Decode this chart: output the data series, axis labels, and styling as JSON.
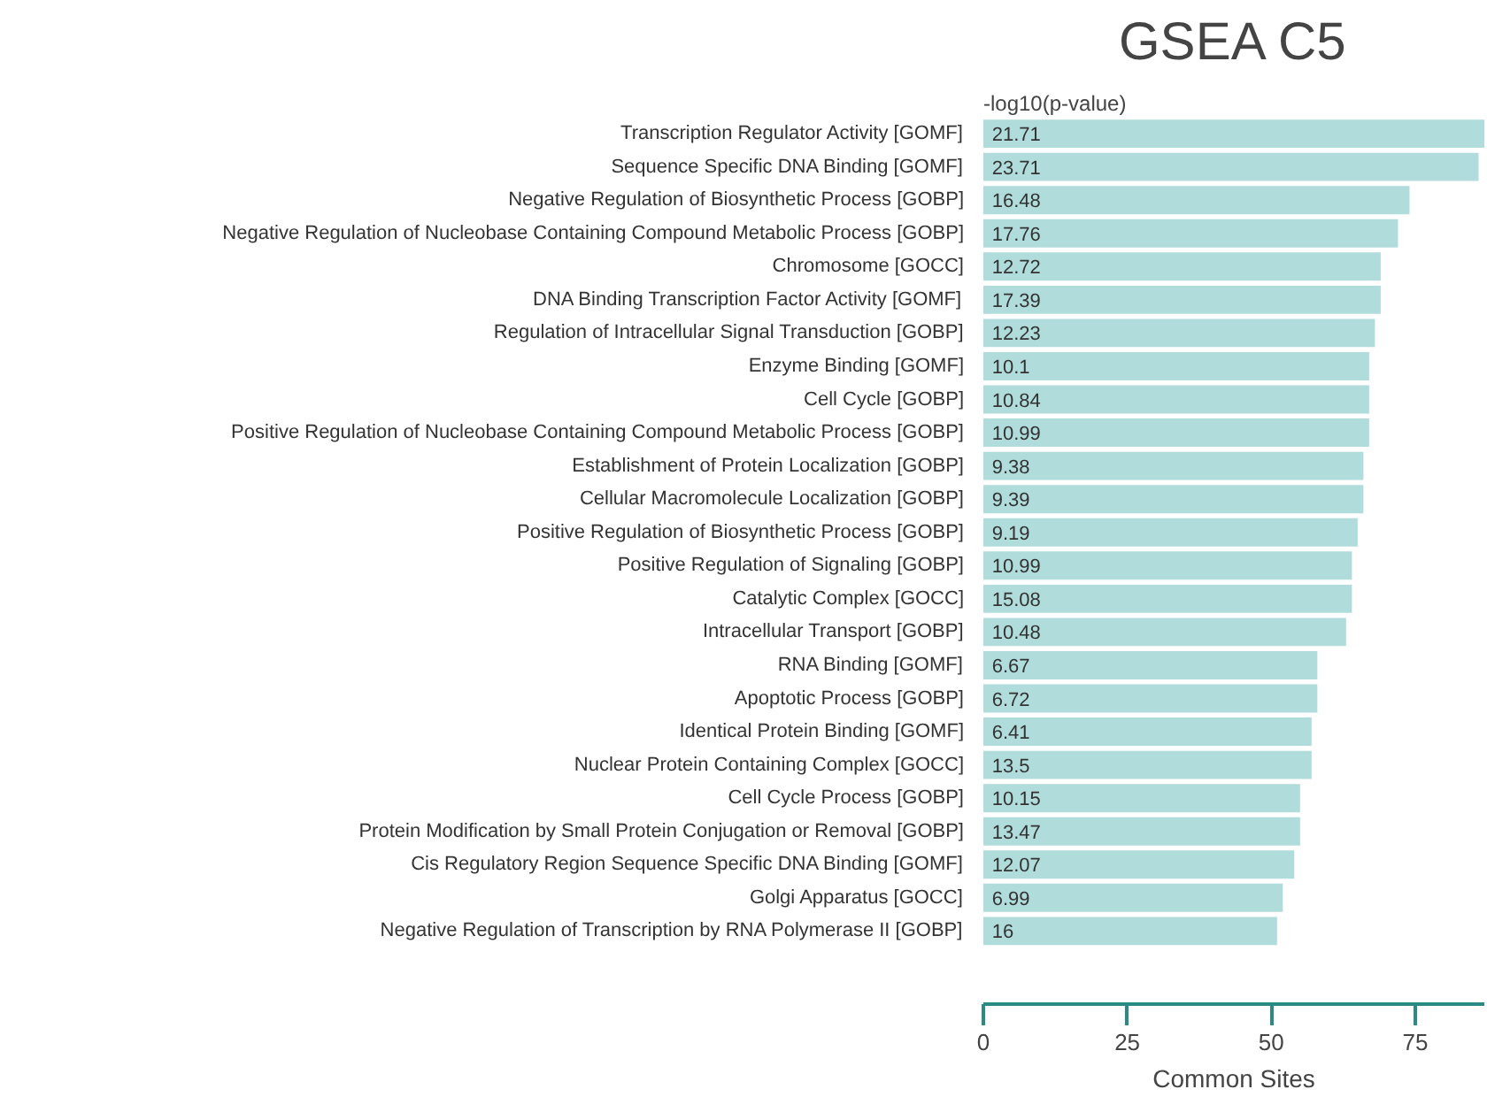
{
  "chart_data": {
    "type": "bar",
    "orientation": "horizontal",
    "title": "GSEA C5",
    "xlabel": "Common Sites",
    "categories": [
      "Transcription Regulator Activity [GOMF]",
      "Sequence Specific DNA Binding [GOMF]",
      "Negative Regulation of Biosynthetic Process [GOBP]",
      "Negative Regulation of Nucleobase Containing Compound Metabolic Process [GOBP]",
      "Chromosome [GOCC]",
      "DNA Binding Transcription Factor Activity [GOMF]",
      "Regulation of Intracellular Signal Transduction [GOBP]",
      "Enzyme Binding [GOMF]",
      "Cell Cycle [GOBP]",
      "Positive Regulation of Nucleobase Containing Compound Metabolic Process [GOBP]",
      "Establishment of Protein Localization [GOBP]",
      "Cellular Macromolecule Localization [GOBP]",
      "Positive Regulation of Biosynthetic Process [GOBP]",
      "Positive Regulation of Signaling [GOBP]",
      "Catalytic Complex [GOCC]",
      "Intracellular Transport [GOBP]",
      "RNA Binding [GOMF]",
      "Apoptotic Process [GOBP]",
      "Identical Protein Binding [GOMF]",
      "Nuclear Protein Containing Complex [GOCC]",
      "Cell Cycle Process [GOBP]",
      "Protein Modification by Small Protein Conjugation or Removal [GOBP]",
      "Cis Regulatory Region Sequence Specific DNA Binding [GOMF]",
      "Golgi Apparatus [GOCC]",
      "Negative Regulation of Transcription by RNA Polymerase II [GOBP]"
    ],
    "values": [
      87,
      86,
      74,
      72,
      69,
      69,
      68,
      67,
      67,
      67,
      66,
      66,
      65,
      64,
      64,
      63,
      58,
      58,
      57,
      57,
      55,
      55,
      54,
      52,
      51
    ],
    "annotations": [
      "-log10(p-value)",
      {
        "text": "21.71",
        "y": "Transcription Regulator Activity [GOMF]"
      },
      {
        "text": "23.71",
        "y": "Sequence Specific DNA Binding [GOMF]"
      },
      {
        "text": "16.48",
        "y": "Negative Regulation of Biosynthetic Process [GOBP]"
      },
      {
        "text": "17.76",
        "y": "Negative Regulation of Nucleobase Containing Compound Metabolic Process [GOBP]"
      },
      {
        "text": "12.72",
        "y": "Chromosome [GOCC]"
      },
      {
        "text": "17.39",
        "y": "DNA Binding Transcription Factor Activity [GOMF]"
      },
      {
        "text": "12.23",
        "y": "Regulation of Intracellular Signal Transduction [GOBP]"
      },
      {
        "text": "10.1",
        "y": "Enzyme Binding [GOMF]"
      },
      {
        "text": "10.84",
        "y": "Cell Cycle [GOBP]"
      },
      {
        "text": "10.99",
        "y": "Positive Regulation of Nucleobase Containing Compound Metabolic Process [GOBP]"
      },
      {
        "text": "9.38",
        "y": "Establishment of Protein Localization [GOBP]"
      },
      {
        "text": "9.39",
        "y": "Cellular Macromolecule Localization [GOBP]"
      },
      {
        "text": "9.19",
        "y": "Positive Regulation of Biosynthetic Process [GOBP]"
      },
      {
        "text": "10.99",
        "y": "Positive Regulation of Signaling [GOBP]"
      },
      {
        "text": "15.08",
        "y": "Catalytic Complex [GOCC]"
      },
      {
        "text": "10.48",
        "y": "Intracellular Transport [GOBP]"
      },
      {
        "text": "6.67",
        "y": "RNA Binding [GOMF]"
      },
      {
        "text": "6.72",
        "y": "Apoptotic Process [GOBP]"
      },
      {
        "text": "6.41",
        "y": "Identical Protein Binding [GOMF]"
      },
      {
        "text": "13.5",
        "y": "Nuclear Protein Containing Complex [GOCC]"
      },
      {
        "text": "10.15",
        "y": "Cell Cycle Process [GOBP]"
      },
      {
        "text": "13.47",
        "y": "Protein Modification by Small Protein Conjugation or Removal [GOBP]"
      },
      {
        "text": "12.07",
        "y": "Cis Regulatory Region Sequence Specific DNA Binding [GOMF]"
      },
      {
        "text": "6.99",
        "y": "Golgi Apparatus [GOCC]"
      },
      {
        "text": "16",
        "y": "Negative Regulation of Transcription by RNA Polymerase II [GOBP]"
      }
    ],
    "color": "#b0dcdb",
    "xlim": [
      0,
      87
    ],
    "xticks": [
      0,
      25,
      50,
      75
    ],
    "grid": false
  }
}
